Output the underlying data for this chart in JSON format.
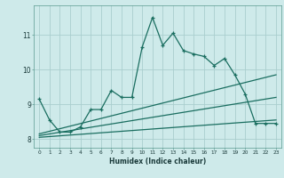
{
  "title": "",
  "xlabel": "Humidex (Indice chaleur)",
  "bg_color": "#ceeaea",
  "grid_color": "#aacece",
  "line_color": "#1a6e60",
  "xlim": [
    -0.5,
    23.5
  ],
  "ylim": [
    7.75,
    11.85
  ],
  "yticks": [
    8,
    9,
    10,
    11
  ],
  "ytick_labels": [
    "8",
    "9",
    "10",
    "11"
  ],
  "xticks": [
    0,
    1,
    2,
    3,
    4,
    5,
    6,
    7,
    8,
    9,
    10,
    11,
    12,
    13,
    14,
    15,
    16,
    17,
    18,
    19,
    20,
    21,
    22,
    23
  ],
  "series1_x": [
    0,
    1,
    2,
    3,
    4,
    5,
    6,
    7,
    8,
    9,
    10,
    11,
    12,
    13,
    14,
    15,
    16,
    17,
    18,
    19,
    20,
    21,
    22,
    23
  ],
  "series1_y": [
    9.15,
    8.55,
    8.2,
    8.2,
    8.35,
    8.85,
    8.85,
    9.4,
    9.2,
    9.2,
    10.65,
    11.5,
    10.7,
    11.05,
    10.55,
    10.45,
    10.38,
    10.12,
    10.32,
    9.85,
    9.3,
    8.45,
    8.45,
    8.45
  ],
  "series2_x": [
    0,
    23
  ],
  "series2_y": [
    8.05,
    8.55
  ],
  "series3_x": [
    0,
    23
  ],
  "series3_y": [
    8.1,
    9.2
  ],
  "series4_x": [
    0,
    23
  ],
  "series4_y": [
    8.15,
    9.85
  ]
}
